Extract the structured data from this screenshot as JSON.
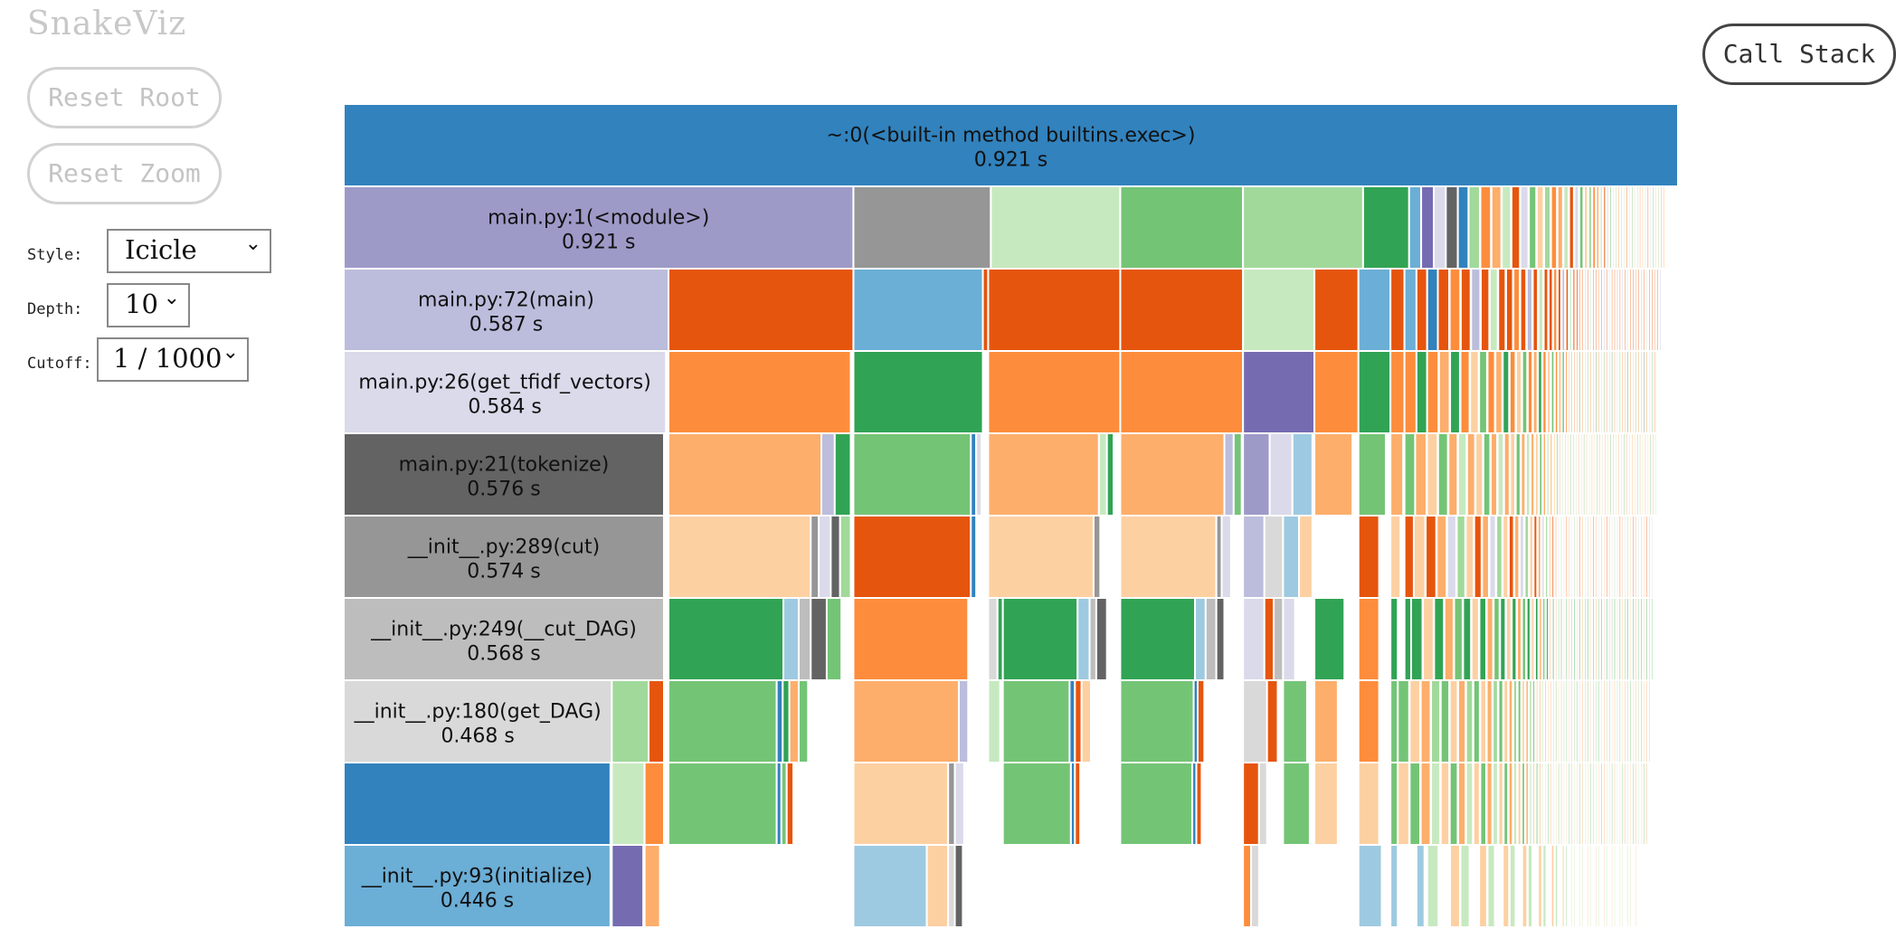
{
  "app": {
    "title": "SnakeViz"
  },
  "buttons": {
    "reset_root": "Reset Root",
    "reset_zoom": "Reset Zoom",
    "call_stack": "Call Stack"
  },
  "controls": {
    "style_label": "Style:",
    "style_value": "Icicle",
    "depth_label": "Depth:",
    "depth_value": "10",
    "cutoff_label": "Cutoff:",
    "cutoff_value": "1 / 1000"
  },
  "colors": {
    "blue": "#3182bd",
    "blue_mid": "#6baed6",
    "blue_light": "#9ecae1",
    "orange": "#e6550d",
    "orange_mid": "#fd8d3c",
    "orange_light": "#fdae6b",
    "orange_pale": "#fdd0a2",
    "green": "#31a354",
    "green_mid": "#74c476",
    "green_light": "#a1d99b",
    "green_pale": "#c7e9c0",
    "purple": "#756bb1",
    "purple_mid": "#9e9ac8",
    "purple_light": "#bcbddc",
    "purple_pale": "#dadaeb",
    "gray_dark": "#636363",
    "gray": "#969696",
    "gray_light": "#bdbdbd",
    "gray_pale": "#d9d9d9",
    "edge": "#ffffff"
  },
  "chart_data": {
    "type": "icicle",
    "total_seconds": 0.921,
    "depth_levels": 10,
    "labeled_nodes": [
      {
        "depth": 0,
        "name": "~:0(<built-in method builtins.exec>)",
        "time": "0.921 s",
        "color": "blue"
      },
      {
        "depth": 1,
        "name": "main.py:1(<module>)",
        "time": "0.921 s",
        "color": "purple_mid"
      },
      {
        "depth": 2,
        "name": "main.py:72(main)",
        "time": "0.587 s",
        "color": "purple_light"
      },
      {
        "depth": 3,
        "name": "main.py:26(get_tfidf_vectors)",
        "time": "0.584 s",
        "color": "purple_pale"
      },
      {
        "depth": 4,
        "name": "main.py:21(tokenize)",
        "time": "0.576 s",
        "color": "gray_dark"
      },
      {
        "depth": 5,
        "name": "__init__.py:289(cut)",
        "time": "0.574 s",
        "color": "gray"
      },
      {
        "depth": 6,
        "name": "__init__.py:249(__cut_DAG)",
        "time": "0.568 s",
        "color": "gray_light"
      },
      {
        "depth": 7,
        "name": "__init__.py:180(get_DAG)",
        "time": "0.468 s",
        "color": "gray_pale"
      },
      {
        "depth": 8,
        "name": "",
        "time": "",
        "color": "blue"
      },
      {
        "depth": 9,
        "name": "__init__.py:93(initialize)",
        "time": "0.446 s",
        "color": "blue_mid"
      }
    ]
  }
}
